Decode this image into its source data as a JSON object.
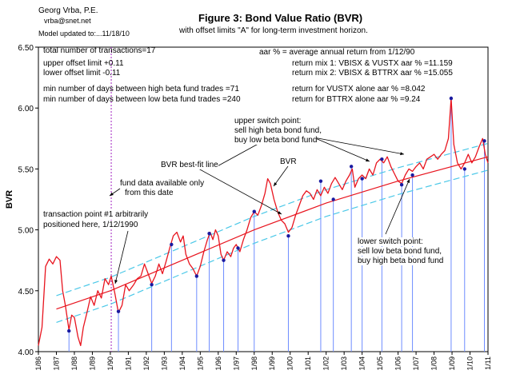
{
  "header": {
    "author": "Georg Vrba, P.E.",
    "email": "vrba@snet.net",
    "updated": "Model updated to:...11/18/10",
    "title": "Figure 3: Bond Value Ratio (BVR)",
    "subtitle": "with offset limits \"A\" for long-term investment horizon."
  },
  "stats": {
    "transactions": "total number of transactions=17",
    "upper_offset": "upper offset limit +0.11",
    "lower_offset": "lower offset limit  -0.11",
    "min_days_high": "min number of days between high beta fund trades =71",
    "min_days_low": "min number of days between low beta fund trades =240",
    "aar_def": "aar % = average annual return from 1/12/90",
    "mix1": "return mix 1: VBISX & VUSTX aar % =11.159",
    "mix2": "return mix 2: VBISX & BTTRX aar % =15.055",
    "vustx": "return for VUSTX alone aar % =8.042",
    "bttrx": "return for BTTRX alone aar % =9.24"
  },
  "annotations": {
    "upper_switch": [
      "upper switch point:",
      "sell high beta bond fund,",
      "buy low beta bond fund"
    ],
    "best_fit": "BVR best-fit line",
    "bvr": "BVR",
    "fund_data": [
      "fund data available only",
      "from this date"
    ],
    "transaction1": [
      "transaction point #1 arbitrarily",
      "positioned here, 1/12/1990"
    ],
    "lower_switch": [
      "lower switch point:",
      "sell low beta bond fund,",
      "buy high beta bond fund"
    ]
  },
  "chart_data": {
    "type": "line",
    "ylabel": "BVR",
    "ylim": [
      4.0,
      6.5
    ],
    "xlim": [
      1986.0,
      2011.0
    ],
    "y_ticks": [
      "4.00",
      "4.50",
      "5.00",
      "5.50",
      "6.00",
      "6.50"
    ],
    "x_ticks": [
      "1/86",
      "1/87",
      "1/88",
      "1/89",
      "1/90",
      "1/91",
      "1/92",
      "1/93",
      "1/94",
      "1/95",
      "1/96",
      "1/97",
      "1/98",
      "1/99",
      "1/00",
      "1/01",
      "1/02",
      "1/03",
      "1/04",
      "1/05",
      "1/06",
      "1/07",
      "1/08",
      "1/09",
      "1/10",
      "1/11"
    ],
    "fund_data_start": 1990.05,
    "series": [
      {
        "name": "BVR",
        "color": "#e8141e",
        "points": [
          [
            1986.0,
            4.05
          ],
          [
            1986.2,
            4.2
          ],
          [
            1986.4,
            4.7
          ],
          [
            1986.6,
            4.76
          ],
          [
            1986.8,
            4.72
          ],
          [
            1987.0,
            4.78
          ],
          [
            1987.2,
            4.75
          ],
          [
            1987.35,
            4.5
          ],
          [
            1987.5,
            4.38
          ],
          [
            1987.7,
            4.18
          ],
          [
            1987.85,
            4.3
          ],
          [
            1988.0,
            4.28
          ],
          [
            1988.2,
            4.12
          ],
          [
            1988.35,
            4.05
          ],
          [
            1988.5,
            4.2
          ],
          [
            1988.7,
            4.32
          ],
          [
            1988.9,
            4.45
          ],
          [
            1989.1,
            4.38
          ],
          [
            1989.3,
            4.5
          ],
          [
            1989.5,
            4.44
          ],
          [
            1989.7,
            4.6
          ],
          [
            1989.9,
            4.55
          ],
          [
            1990.05,
            4.62
          ],
          [
            1990.25,
            4.48
          ],
          [
            1990.45,
            4.32
          ],
          [
            1990.65,
            4.38
          ],
          [
            1990.85,
            4.55
          ],
          [
            1991.05,
            4.5
          ],
          [
            1991.3,
            4.55
          ],
          [
            1991.5,
            4.6
          ],
          [
            1991.7,
            4.62
          ],
          [
            1991.9,
            4.72
          ],
          [
            1992.05,
            4.66
          ],
          [
            1992.3,
            4.56
          ],
          [
            1992.5,
            4.62
          ],
          [
            1992.7,
            4.72
          ],
          [
            1992.9,
            4.64
          ],
          [
            1993.1,
            4.74
          ],
          [
            1993.3,
            4.85
          ],
          [
            1993.5,
            4.95
          ],
          [
            1993.7,
            4.98
          ],
          [
            1993.9,
            4.9
          ],
          [
            1994.05,
            4.95
          ],
          [
            1994.2,
            4.8
          ],
          [
            1994.4,
            4.72
          ],
          [
            1994.6,
            4.68
          ],
          [
            1994.8,
            4.62
          ],
          [
            1995.0,
            4.7
          ],
          [
            1995.2,
            4.82
          ],
          [
            1995.4,
            4.92
          ],
          [
            1995.55,
            4.98
          ],
          [
            1995.7,
            4.92
          ],
          [
            1995.85,
            5.0
          ],
          [
            1996.0,
            4.95
          ],
          [
            1996.15,
            4.8
          ],
          [
            1996.3,
            4.75
          ],
          [
            1996.5,
            4.82
          ],
          [
            1996.7,
            4.78
          ],
          [
            1996.85,
            4.85
          ],
          [
            1997.0,
            4.88
          ],
          [
            1997.2,
            4.82
          ],
          [
            1997.4,
            4.92
          ],
          [
            1997.6,
            5.0
          ],
          [
            1997.8,
            5.1
          ],
          [
            1998.0,
            5.15
          ],
          [
            1998.2,
            5.12
          ],
          [
            1998.4,
            5.2
          ],
          [
            1998.6,
            5.3
          ],
          [
            1998.75,
            5.42
          ],
          [
            1998.9,
            5.38
          ],
          [
            1999.1,
            5.25
          ],
          [
            1999.3,
            5.15
          ],
          [
            1999.5,
            5.08
          ],
          [
            1999.7,
            5.05
          ],
          [
            1999.9,
            4.98
          ],
          [
            2000.1,
            5.02
          ],
          [
            2000.3,
            5.12
          ],
          [
            2000.5,
            5.2
          ],
          [
            2000.7,
            5.28
          ],
          [
            2000.9,
            5.32
          ],
          [
            2001.1,
            5.3
          ],
          [
            2001.3,
            5.25
          ],
          [
            2001.5,
            5.33
          ],
          [
            2001.7,
            5.28
          ],
          [
            2001.9,
            5.35
          ],
          [
            2002.1,
            5.3
          ],
          [
            2002.3,
            5.38
          ],
          [
            2002.5,
            5.43
          ],
          [
            2002.7,
            5.38
          ],
          [
            2002.9,
            5.33
          ],
          [
            2003.1,
            5.4
          ],
          [
            2003.3,
            5.45
          ],
          [
            2003.45,
            5.5
          ],
          [
            2003.6,
            5.35
          ],
          [
            2003.8,
            5.42
          ],
          [
            2004.0,
            5.45
          ],
          [
            2004.2,
            5.42
          ],
          [
            2004.4,
            5.5
          ],
          [
            2004.6,
            5.45
          ],
          [
            2004.8,
            5.55
          ],
          [
            2005.0,
            5.58
          ],
          [
            2005.2,
            5.55
          ],
          [
            2005.4,
            5.6
          ],
          [
            2005.6,
            5.52
          ],
          [
            2005.8,
            5.46
          ],
          [
            2006.0,
            5.4
          ],
          [
            2006.2,
            5.38
          ],
          [
            2006.4,
            5.45
          ],
          [
            2006.6,
            5.5
          ],
          [
            2006.8,
            5.48
          ],
          [
            2007.0,
            5.52
          ],
          [
            2007.2,
            5.55
          ],
          [
            2007.4,
            5.5
          ],
          [
            2007.6,
            5.58
          ],
          [
            2007.8,
            5.6
          ],
          [
            2008.0,
            5.62
          ],
          [
            2008.2,
            5.58
          ],
          [
            2008.4,
            5.62
          ],
          [
            2008.6,
            5.65
          ],
          [
            2008.8,
            5.75
          ],
          [
            2008.95,
            6.08
          ],
          [
            2009.1,
            5.7
          ],
          [
            2009.3,
            5.55
          ],
          [
            2009.5,
            5.5
          ],
          [
            2009.7,
            5.55
          ],
          [
            2009.9,
            5.62
          ],
          [
            2010.1,
            5.55
          ],
          [
            2010.3,
            5.6
          ],
          [
            2010.5,
            5.68
          ],
          [
            2010.7,
            5.75
          ],
          [
            2010.85,
            5.62
          ],
          [
            2011.0,
            5.55
          ]
        ]
      },
      {
        "name": "BVR best-fit line",
        "color": "#e8141e",
        "points": [
          [
            1987.0,
            4.35
          ],
          [
            1990.0,
            4.5
          ],
          [
            1994.0,
            4.75
          ],
          [
            1998.0,
            5.0
          ],
          [
            2002.0,
            5.22
          ],
          [
            2006.0,
            5.4
          ],
          [
            2011.0,
            5.6
          ]
        ]
      },
      {
        "name": "upper offset limit",
        "color": "#4ac8e8",
        "points": [
          [
            1987.0,
            4.46
          ],
          [
            1990.0,
            4.61
          ],
          [
            1994.0,
            4.86
          ],
          [
            1998.0,
            5.11
          ],
          [
            2002.0,
            5.33
          ],
          [
            2006.0,
            5.51
          ],
          [
            2011.0,
            5.71
          ]
        ]
      },
      {
        "name": "lower offset limit",
        "color": "#4ac8e8",
        "points": [
          [
            1987.0,
            4.24
          ],
          [
            1990.0,
            4.39
          ],
          [
            1994.0,
            4.64
          ],
          [
            1998.0,
            4.89
          ],
          [
            2002.0,
            5.11
          ],
          [
            2006.0,
            5.29
          ],
          [
            2011.0,
            5.49
          ]
        ]
      }
    ],
    "switch_points": [
      {
        "x": 1987.7,
        "y": 4.17
      },
      {
        "x": 1990.45,
        "y": 4.33
      },
      {
        "x": 1992.3,
        "y": 4.55
      },
      {
        "x": 1993.4,
        "y": 4.88
      },
      {
        "x": 1994.8,
        "y": 4.62
      },
      {
        "x": 1995.5,
        "y": 4.97
      },
      {
        "x": 1996.3,
        "y": 4.75
      },
      {
        "x": 1997.1,
        "y": 4.85
      },
      {
        "x": 1998.0,
        "y": 5.15
      },
      {
        "x": 1999.9,
        "y": 4.95
      },
      {
        "x": 2001.7,
        "y": 5.4
      },
      {
        "x": 2002.4,
        "y": 5.25
      },
      {
        "x": 2003.4,
        "y": 5.52
      },
      {
        "x": 2004.0,
        "y": 5.42
      },
      {
        "x": 2005.1,
        "y": 5.58
      },
      {
        "x": 2006.2,
        "y": 5.37
      },
      {
        "x": 2006.8,
        "y": 5.45
      },
      {
        "x": 2008.95,
        "y": 6.08
      },
      {
        "x": 2009.7,
        "y": 5.5
      },
      {
        "x": 2010.8,
        "y": 5.73
      }
    ]
  }
}
